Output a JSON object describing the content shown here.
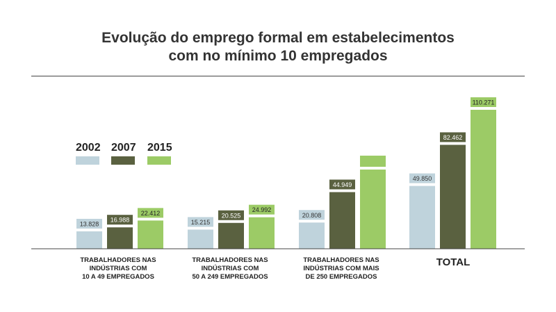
{
  "title_lines": [
    "Evolução do emprego formal em estabelecimentos",
    "com no mínimo 10 empregados"
  ],
  "colors": {
    "2002": "#bfd3dc",
    "2007": "#5a6140",
    "2015": "#9ccb66"
  },
  "chart_data": {
    "type": "bar",
    "categories": [
      "TRABALHADORES NAS\nINDÚSTRIAS COM\n10 A 49 EMPREGADOS",
      "TRABALHADORES NAS\nINDÚSTRIAS COM\n50 A 249 EMPREGADOS",
      "TRABALHADORES NAS\nINDÚSTRIAS COM MAIS\nDE 250 EMPREGADOS",
      "TOTAL"
    ],
    "series": [
      {
        "name": "2002",
        "values": [
          13828,
          15215,
          20808,
          49850
        ],
        "labels": [
          "13.828",
          "15.215",
          "20.808",
          "49.850"
        ]
      },
      {
        "name": "2007",
        "values": [
          16988,
          20525,
          44949,
          82462
        ],
        "labels": [
          "16.988",
          "20.525",
          "44.949",
          "82.462"
        ]
      },
      {
        "name": "2015",
        "values": [
          22412,
          24992,
          null,
          110271
        ],
        "labels": [
          "22.412",
          "24.992",
          "",
          "110.271"
        ]
      }
    ],
    "legend": "left",
    "grid": false,
    "ylim": [
      0,
      115000
    ]
  }
}
